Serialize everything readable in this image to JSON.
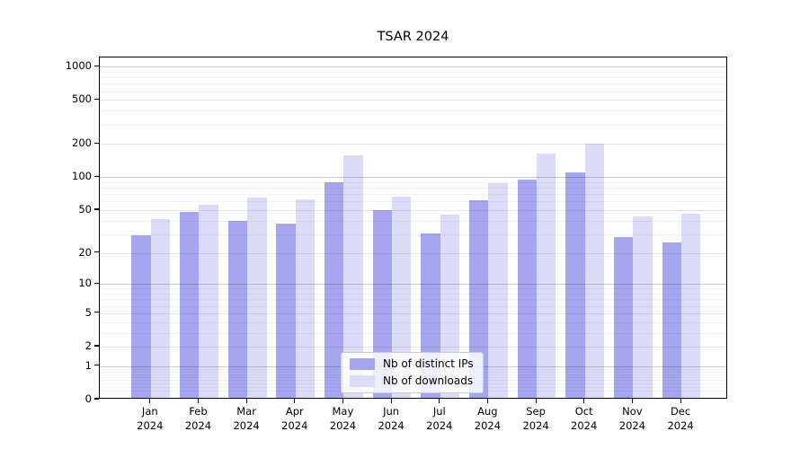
{
  "chart_data": {
    "type": "bar",
    "title": "TSAR 2024",
    "yscale": "log1p",
    "grid": true,
    "legend_position": "lower-center",
    "ylim": [
      0,
      1210
    ],
    "y_ticks": [
      0,
      1,
      2,
      5,
      10,
      20,
      50,
      100,
      200,
      500,
      1000
    ],
    "y_tick_labels": [
      "0",
      "1",
      "2",
      "5",
      "10",
      "20",
      "50",
      "100",
      "200",
      "500",
      "1000"
    ],
    "categories": [
      "Jan 2024",
      "Feb 2024",
      "Mar 2024",
      "Apr 2024",
      "May 2024",
      "Jun 2024",
      "Jul 2024",
      "Aug 2024",
      "Sep 2024",
      "Oct 2024",
      "Nov 2024",
      "Dec 2024"
    ],
    "x_tick_lines": [
      {
        "month": "Jan",
        "year": "2024"
      },
      {
        "month": "Feb",
        "year": "2024"
      },
      {
        "month": "Mar",
        "year": "2024"
      },
      {
        "month": "Apr",
        "year": "2024"
      },
      {
        "month": "May",
        "year": "2024"
      },
      {
        "month": "Jun",
        "year": "2024"
      },
      {
        "month": "Jul",
        "year": "2024"
      },
      {
        "month": "Aug",
        "year": "2024"
      },
      {
        "month": "Sep",
        "year": "2024"
      },
      {
        "month": "Oct",
        "year": "2024"
      },
      {
        "month": "Nov",
        "year": "2024"
      },
      {
        "month": "Dec",
        "year": "2024"
      }
    ],
    "series": [
      {
        "name": "Nb of distinct IPs",
        "color": "#a6a6f0",
        "values": [
          28,
          46,
          38,
          36,
          87,
          48,
          29,
          59,
          92,
          107,
          27,
          24
        ]
      },
      {
        "name": "Nb of downloads",
        "color": "#dcdcf8",
        "values": [
          40,
          54,
          63,
          60,
          151,
          64,
          44,
          85,
          158,
          195,
          42,
          45
        ]
      }
    ]
  },
  "style_colors": {
    "grid_major": "rgba(0,0,0,0.20)",
    "grid_mid": "rgba(0,0,0,0.09)",
    "grid_minor": "rgba(0,0,0,0.05)",
    "axis": "#000000"
  }
}
